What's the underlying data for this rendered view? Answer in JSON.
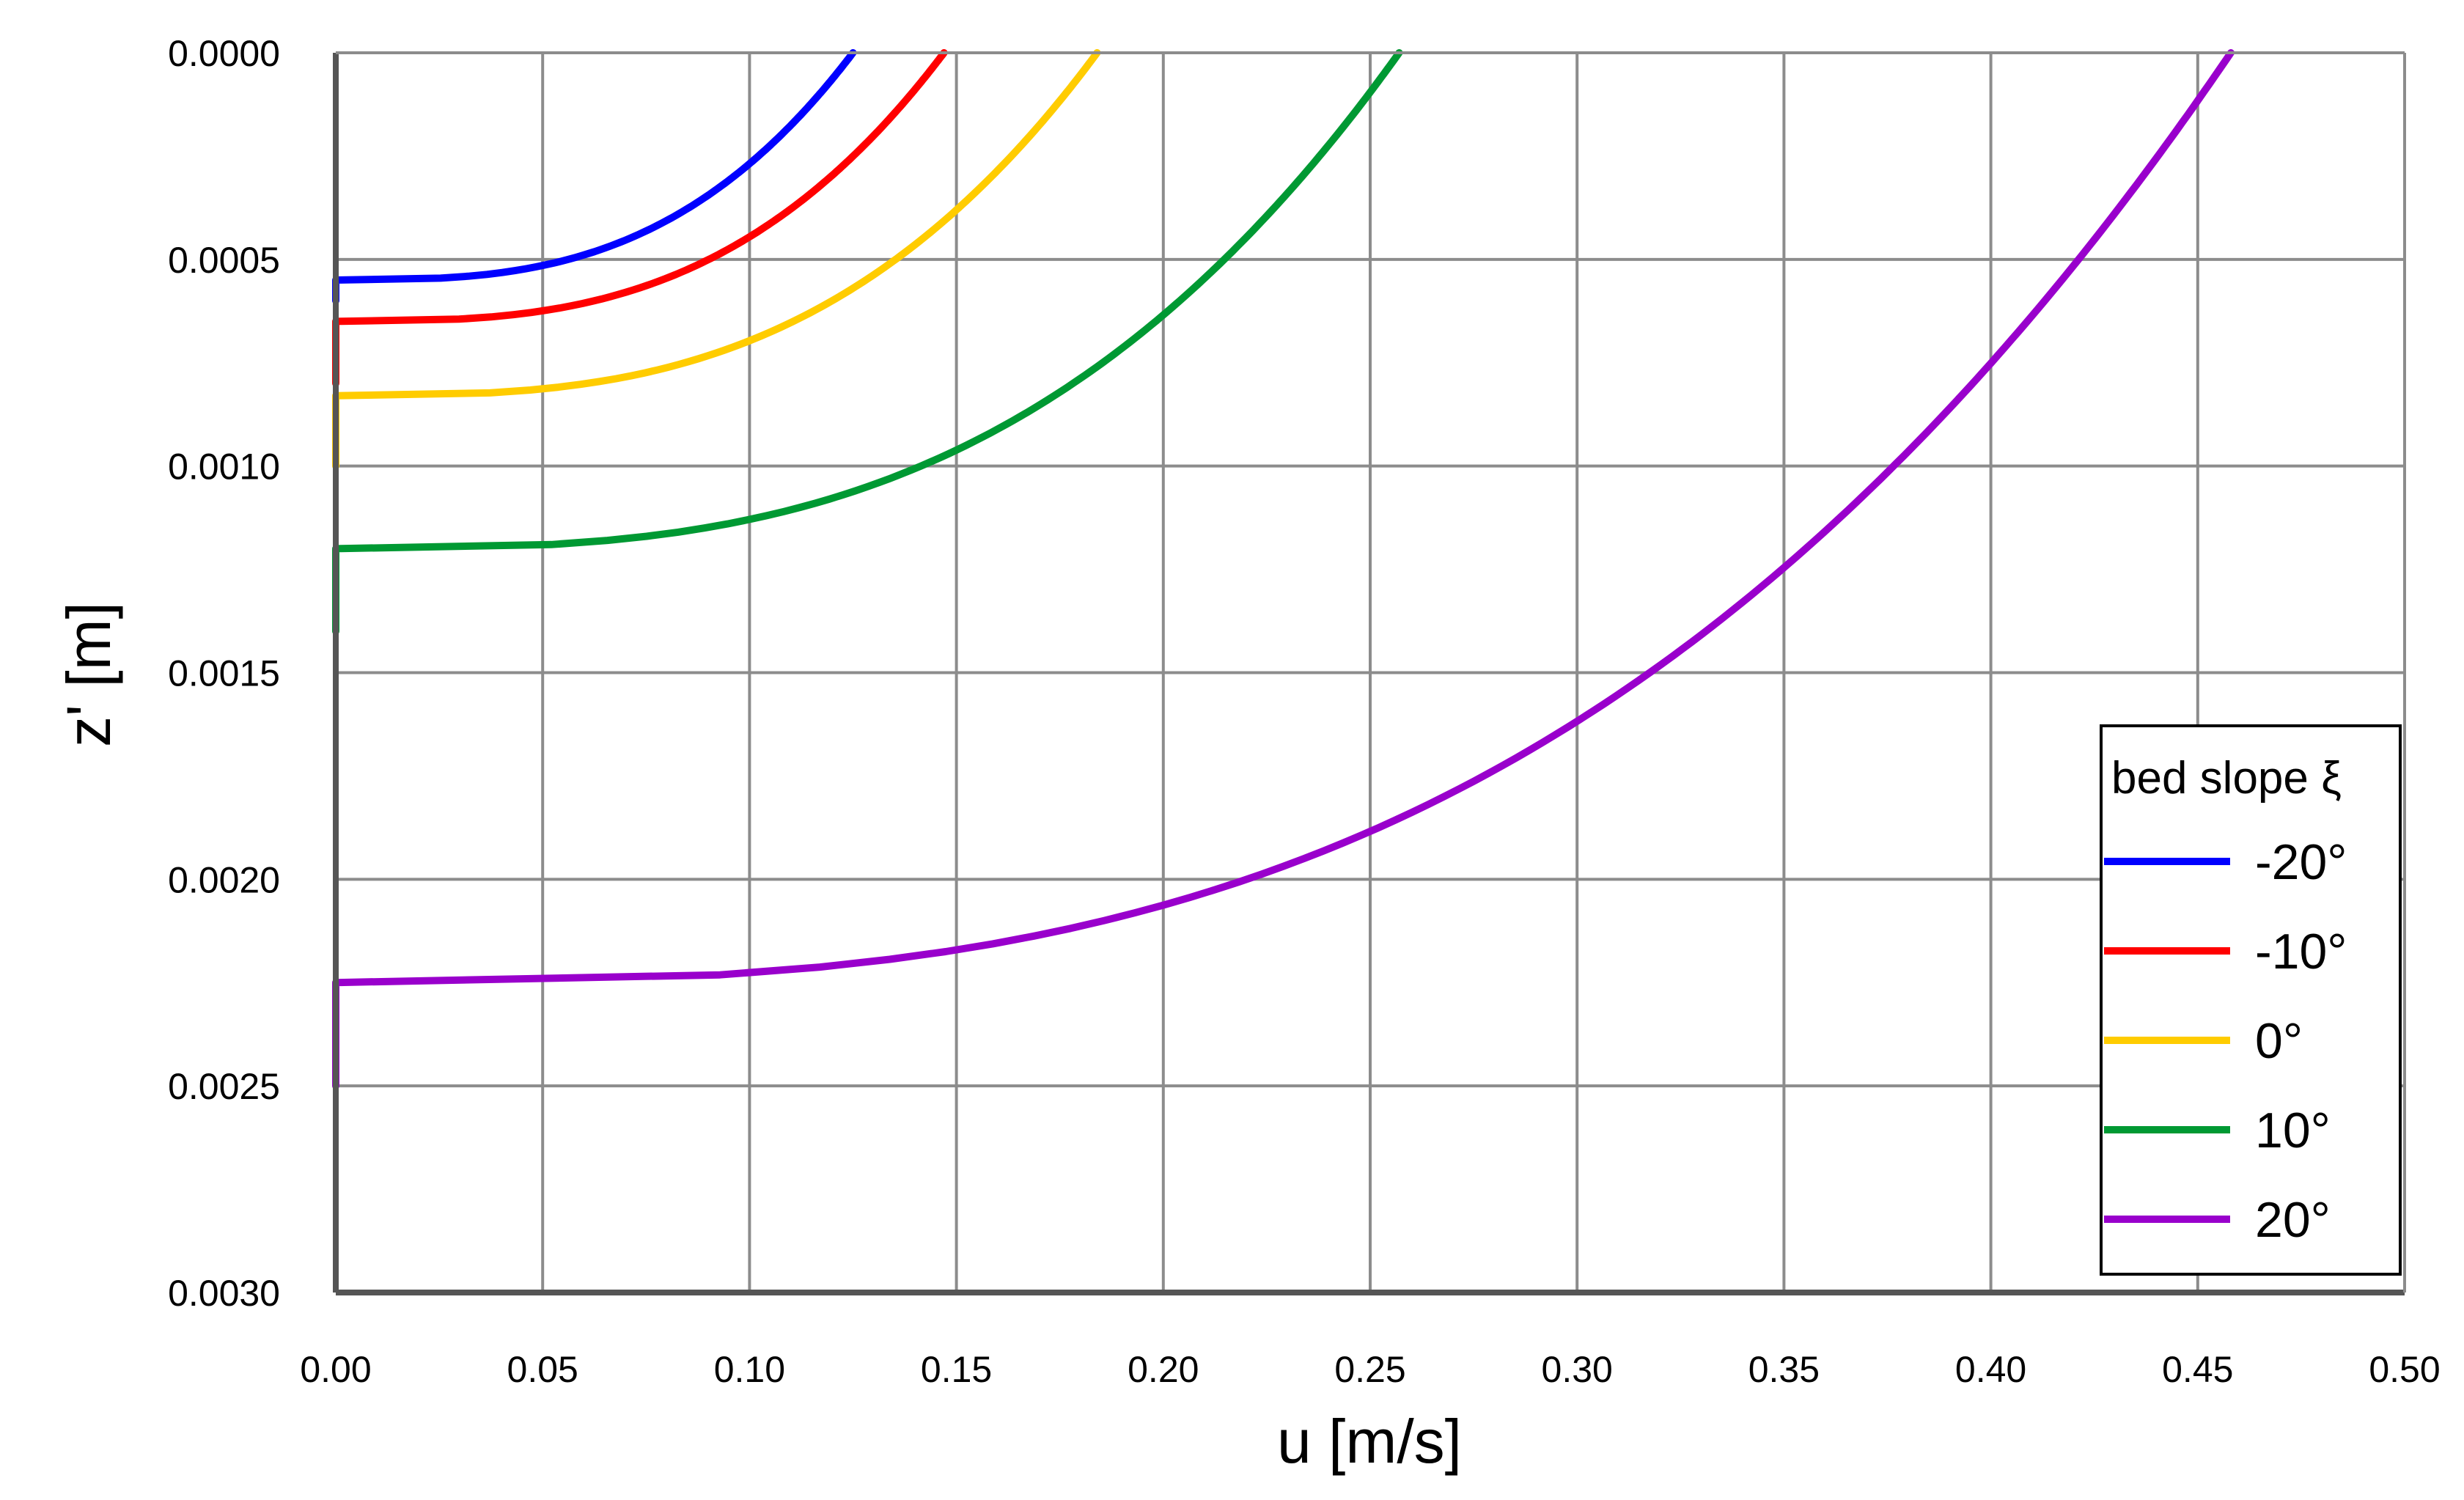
{
  "chart_data": {
    "type": "line",
    "xlabel": "u [m/s]",
    "ylabel": "z' [m]",
    "xlim": [
      0,
      0.5
    ],
    "ylim": [
      0,
      0.003
    ],
    "y_inverted": true,
    "grid": true,
    "x_ticks": [
      "0.00",
      "0.05",
      "0.10",
      "0.15",
      "0.20",
      "0.25",
      "0.30",
      "0.35",
      "0.40",
      "0.45",
      "0.50"
    ],
    "y_ticks": [
      "0.0000",
      "0.0005",
      "0.0010",
      "0.0015",
      "0.0020",
      "0.0025",
      "0.0030"
    ],
    "legend": {
      "title": "bed slope ξ",
      "placement": "right"
    },
    "series": [
      {
        "name": "-20°",
        "color": "#0000ff",
        "delta": 0.00055,
        "u_max": 0.125,
        "x": [
          0.125,
          0.107,
          0.089,
          0.073,
          0.057,
          0.043,
          0.031,
          0.02,
          0.011,
          0.005,
          0.0015,
          0,
          0
        ],
        "y": [
          0.0,
          5e-05,
          0.0001,
          0.00015,
          0.0002,
          0.00025,
          0.0003,
          0.00035,
          0.0004,
          0.00045,
          0.0005,
          0.00055,
          0.0006
        ]
      },
      {
        "name": "-10°",
        "color": "#ff0000",
        "delta": 0.00065,
        "u_max": 0.147,
        "x": [
          0.147,
          0.124,
          0.102,
          0.082,
          0.064,
          0.047,
          0.032,
          0.019,
          0.009,
          0.003,
          0,
          0
        ],
        "y": [
          0.0,
          6e-05,
          0.00012,
          0.00018,
          0.00024,
          0.0003,
          0.00036,
          0.00042,
          0.00048,
          0.00054,
          0.00065,
          0.0008
        ]
      },
      {
        "name": "0°",
        "color": "#ffcc00",
        "delta": 0.00083,
        "u_max": 0.184,
        "x": [
          0.184,
          0.157,
          0.131,
          0.107,
          0.085,
          0.064,
          0.046,
          0.03,
          0.016,
          0.006,
          0.001,
          0,
          0
        ],
        "y": [
          0.0,
          8e-05,
          0.00016,
          0.00024,
          0.00032,
          0.0004,
          0.00048,
          0.00056,
          0.00064,
          0.00072,
          0.0008,
          0.00083,
          0.001
        ]
      },
      {
        "name": "10°",
        "color": "#009933",
        "delta": 0.0012,
        "u_max": 0.257,
        "x": [
          0.257,
          0.222,
          0.188,
          0.156,
          0.126,
          0.098,
          0.072,
          0.049,
          0.029,
          0.013,
          0.003,
          0,
          0
        ],
        "y": [
          0.0,
          0.00011,
          0.00022,
          0.00033,
          0.00044,
          0.00055,
          0.00066,
          0.00077,
          0.00088,
          0.00099,
          0.0011,
          0.0012,
          0.0014
        ]
      },
      {
        "name": "20°",
        "color": "#9900cc",
        "delta": 0.00225,
        "u_max": 0.458,
        "x": [
          0.458,
          0.395,
          0.334,
          0.277,
          0.224,
          0.174,
          0.129,
          0.088,
          0.052,
          0.024,
          0.006,
          0,
          0
        ],
        "y": [
          0.0,
          0.0002,
          0.0004,
          0.0006,
          0.0008,
          0.001,
          0.0012,
          0.0014,
          0.0016,
          0.0018,
          0.002,
          0.00225,
          0.0025
        ]
      }
    ]
  }
}
